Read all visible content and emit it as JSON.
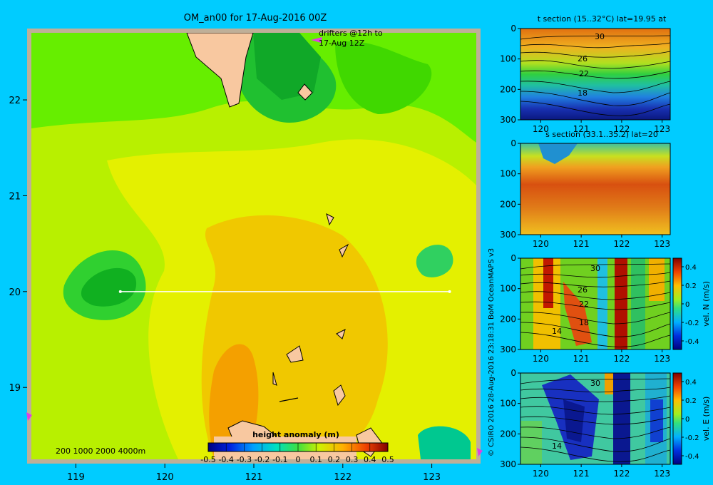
{
  "chart_data": [
    {
      "type": "heatmap",
      "title": "OM_an00 for 17-Aug-2016 00Z",
      "x_ticks": [
        "119",
        "120",
        "121",
        "122",
        "123"
      ],
      "y_ticks": [
        "19",
        "20",
        "21",
        "22"
      ],
      "xlim": [
        118.5,
        123.5
      ],
      "ylim": [
        18.25,
        22.7
      ],
      "section_line": {
        "lat": 20,
        "lon_start": 119.5,
        "lon_end": 123.2
      },
      "annotation": [
        "drifters @12h to",
        "17-Aug 12Z"
      ],
      "depth_legend": "200  1000  2000  4000m",
      "colorbar": {
        "label": "height anomaly (m)",
        "ticks": [
          "-0.5",
          "-0.4",
          "-0.3",
          "-0.2",
          "-0.1",
          "0",
          "0.1",
          "0.2",
          "0.3",
          "0.4",
          "0.5"
        ],
        "range": [
          -0.5,
          0.5
        ]
      }
    },
    {
      "type": "heatmap",
      "title": "t section (15..32°C) lat=19.95 at",
      "x_ticks": [
        "120",
        "121",
        "122",
        "123"
      ],
      "y_ticks": [
        "0",
        "100",
        "200",
        "300"
      ],
      "contour_labels": [
        "30",
        "26",
        "22",
        "18"
      ]
    },
    {
      "type": "heatmap",
      "title": "s section (33.1..35.2) lat=20",
      "x_ticks": [
        "120",
        "121",
        "122",
        "123"
      ],
      "y_ticks": [
        "0",
        "100",
        "200",
        "300"
      ]
    },
    {
      "type": "heatmap",
      "title": "",
      "x_ticks": [
        "120",
        "121",
        "122",
        "123"
      ],
      "y_ticks": [
        "0",
        "100",
        "200",
        "300"
      ],
      "contour_labels": [
        "30",
        "26",
        "22",
        "18",
        "14"
      ],
      "colorbar": {
        "label": "vel. N (m/s)",
        "ticks": [
          "0.4",
          "0.2",
          "0",
          "-0.2",
          "-0.4"
        ]
      }
    },
    {
      "type": "heatmap",
      "title": "",
      "x_ticks": [
        "120",
        "121",
        "122",
        "123"
      ],
      "y_ticks": [
        "0",
        "100",
        "200",
        "300"
      ],
      "contour_labels": [
        "30",
        "14"
      ],
      "colorbar": {
        "label": "vel. E (m/s)",
        "ticks": [
          "0.4",
          "0.2",
          "0",
          "-0.2",
          "-0.4"
        ]
      }
    }
  ],
  "credit": "© CSIRO 2016  28-Aug-2016 23:18:31 BoM OceanMAPS v3"
}
